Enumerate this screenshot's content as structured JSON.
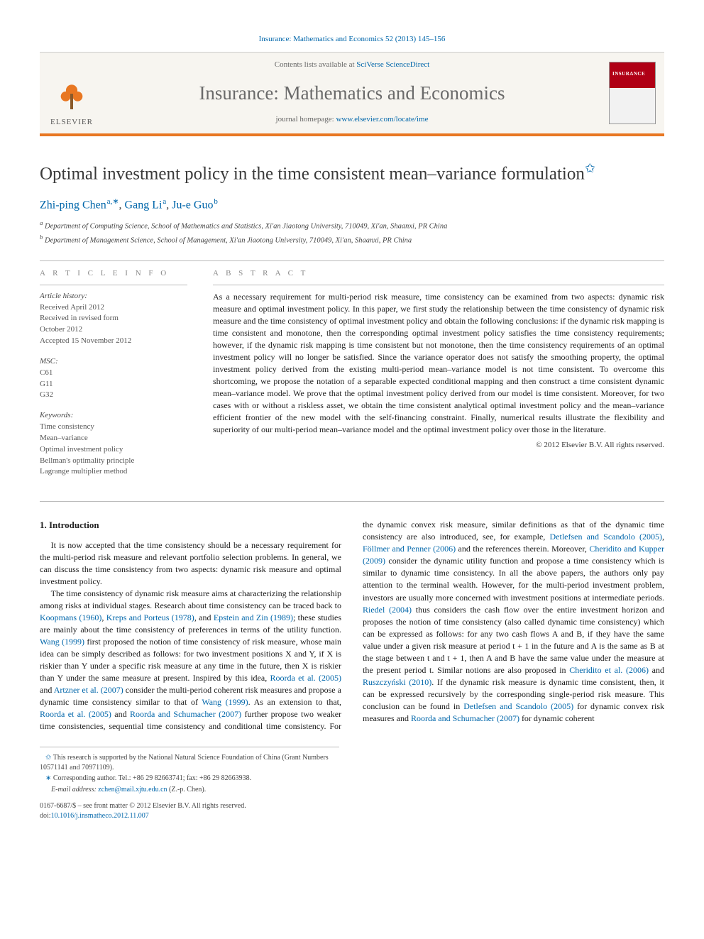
{
  "colors": {
    "accent": "#e87722",
    "link": "#0066aa",
    "text": "#1a1a1a",
    "muted": "#6a6a6a",
    "rule": "#bbbbbb",
    "cover_red": "#b00015",
    "background": "#ffffff",
    "masthead_bg": "#f7f5f0"
  },
  "typography": {
    "body_family": "Georgia, 'Times New Roman', serif",
    "title_size_pt": 19,
    "journal_size_pt": 20,
    "body_size_pt": 9,
    "abstract_size_pt": 9,
    "footnote_size_pt": 7.5
  },
  "header": {
    "citation": "Insurance: Mathematics and Economics 52 (2013) 145–156",
    "contents_prefix": "Contents lists available at ",
    "contents_link": "SciVerse ScienceDirect",
    "journal": "Insurance: Mathematics and Economics",
    "homepage_prefix": "journal homepage: ",
    "homepage_link": "www.elsevier.com/locate/ime",
    "publisher_label": "ELSEVIER",
    "cover_label": "INSURANCE"
  },
  "article": {
    "title": "Optimal investment policy in the time consistent mean–variance formulation",
    "title_footnote_symbol": "✩",
    "authors_html": "Zhi-ping Chen",
    "authors": [
      {
        "name": "Zhi-ping Chen",
        "affil": "a",
        "corr": true
      },
      {
        "name": "Gang Li",
        "affil": "a",
        "corr": false
      },
      {
        "name": "Ju-e Guo",
        "affil": "b",
        "corr": false
      }
    ],
    "affiliations": [
      {
        "key": "a",
        "text": "Department of Computing Science, School of Mathematics and Statistics, Xi'an Jiaotong University, 710049, Xi'an, Shaanxi, PR China"
      },
      {
        "key": "b",
        "text": "Department of Management Science, School of Management, Xi'an Jiaotong University, 710049, Xi'an, Shaanxi, PR China"
      }
    ]
  },
  "info": {
    "heading": "A R T I C L E   I N F O",
    "history_title": "Article history:",
    "history": [
      "Received April 2012",
      "Received in revised form",
      "October 2012",
      "Accepted 15 November 2012"
    ],
    "msc_title": "MSC:",
    "msc": [
      "C61",
      "G11",
      "G32"
    ],
    "keywords_title": "Keywords:",
    "keywords": [
      "Time consistency",
      "Mean–variance",
      "Optimal investment policy",
      "Bellman's optimality principle",
      "Lagrange multiplier method"
    ]
  },
  "abstract": {
    "heading": "A B S T R A C T",
    "text": "As a necessary requirement for multi-period risk measure, time consistency can be examined from two aspects: dynamic risk measure and optimal investment policy. In this paper, we first study the relationship between the time consistency of dynamic risk measure and the time consistency of optimal investment policy and obtain the following conclusions: if the dynamic risk mapping is time consistent and monotone, then the corresponding optimal investment policy satisfies the time consistency requirements; however, if the dynamic risk mapping is time consistent but not monotone, then the time consistency requirements of an optimal investment policy will no longer be satisfied. Since the variance operator does not satisfy the smoothing property, the optimal investment policy derived from the existing multi-period mean–variance model is not time consistent. To overcome this shortcoming, we propose the notation of a separable expected conditional mapping and then construct a time consistent dynamic mean–variance model. We prove that the optimal investment policy derived from our model is time consistent. Moreover, for two cases with or without a riskless asset, we obtain the time consistent analytical optimal investment policy and the mean–variance efficient frontier of the new model with the self-financing constraint. Finally, numerical results illustrate the flexibility and superiority of our multi-period mean–variance model and the optimal investment policy over those in the literature.",
    "copyright": "© 2012 Elsevier B.V. All rights reserved."
  },
  "body": {
    "section_number": "1.",
    "section_title": "Introduction",
    "p1": "It is now accepted that the time consistency should be a necessary requirement for the multi-period risk measure and relevant portfolio selection problems. In general, we can discuss the time consistency from two aspects: dynamic risk measure and optimal investment policy.",
    "p2a": "The time consistency of dynamic risk measure aims at characterizing the relationship among risks at individual stages. Research about time consistency can be traced back to ",
    "l2a": "Koopmans (1960)",
    "p2b": ", ",
    "l2b": "Kreps and Porteus (1978)",
    "p2c": ", and ",
    "l2c": "Epstein and Zin (1989)",
    "p2d": "; these studies are mainly about the time consistency of preferences in terms of the utility function. ",
    "l2d": "Wang (1999)",
    "p2e": " first proposed the notion of time consistency of risk measure, whose main idea can be simply described as follows: for two investment positions X and Y, if X is riskier than Y under a specific risk measure at any time in the future, then X is riskier than Y under the same measure at present. Inspired by this idea, ",
    "l2e": "Roorda et al. (2005)",
    "p2f": " and ",
    "l2f": "Artzner et al. (2007)",
    "p2g": " consider the multi-period coherent risk measures and propose a dynamic time consistency similar to that of ",
    "l2g": "Wang (1999)",
    "p2h": ". ",
    "p3a": "As an extension to that, ",
    "l3a": "Roorda et al. (2005)",
    "p3b": " and ",
    "l3b": "Roorda and Schumacher (2007)",
    "p3c": " further propose two weaker time consistencies, sequential time consistency and conditional time consistency. For the dynamic convex risk measure, similar definitions as that of the dynamic time consistency are also introduced, see, for example, ",
    "l3c": "Detlefsen and Scandolo (2005)",
    "p3d": ", ",
    "l3d": "Föllmer and Penner (2006)",
    "p3e": " and the references therein. Moreover, ",
    "l3e": "Cheridito and Kupper (2009)",
    "p3f": " consider the dynamic utility function and propose a time consistency which is similar to dynamic time consistency. In all the above papers, the authors only pay attention to the terminal wealth. However, for the multi-period investment problem, investors are usually more concerned with investment positions at intermediate periods. ",
    "l3f": "Riedel (2004)",
    "p3g": " thus considers the cash flow over the entire investment horizon and proposes the notion of time consistency (also called dynamic time consistency) which can be expressed as follows: for any two cash flows A and B, if they have the same value under a given risk measure at period t + 1 in the future and A is the same as B at the stage between t and t + 1, then A and B have the same value under the measure at the present period t. Similar notions are also proposed in ",
    "l3g": "Cheridito et al. (2006)",
    "p3h": " and ",
    "l3h": "Ruszczyński (2010)",
    "p3i": ". If the dynamic risk measure is dynamic time consistent, then, it can be expressed recursively by the corresponding single-period risk measure. This conclusion can be found in ",
    "l3i": "Detlefsen and Scandolo (2005)",
    "p3j": " for dynamic convex risk measures and ",
    "l3j": "Roorda and Schumacher (2007)",
    "p3k": " for dynamic coherent"
  },
  "footnotes": {
    "funding_symbol": "✩",
    "funding": "This research is supported by the National Natural Science Foundation of China (Grant Numbers 10571141 and 70971109).",
    "corr_symbol": "∗",
    "corr": "Corresponding author. Tel.: +86 29 82663741; fax: +86 29 82663938.",
    "email_label": "E-mail address:",
    "email": "zchen@mail.xjtu.edu.cn",
    "email_who": "(Z.-p. Chen)."
  },
  "footer": {
    "left": "0167-6687/$ – see front matter © 2012 Elsevier B.V. All rights reserved.",
    "doi_label": "doi:",
    "doi": "10.1016/j.insmatheco.2012.11.007"
  }
}
